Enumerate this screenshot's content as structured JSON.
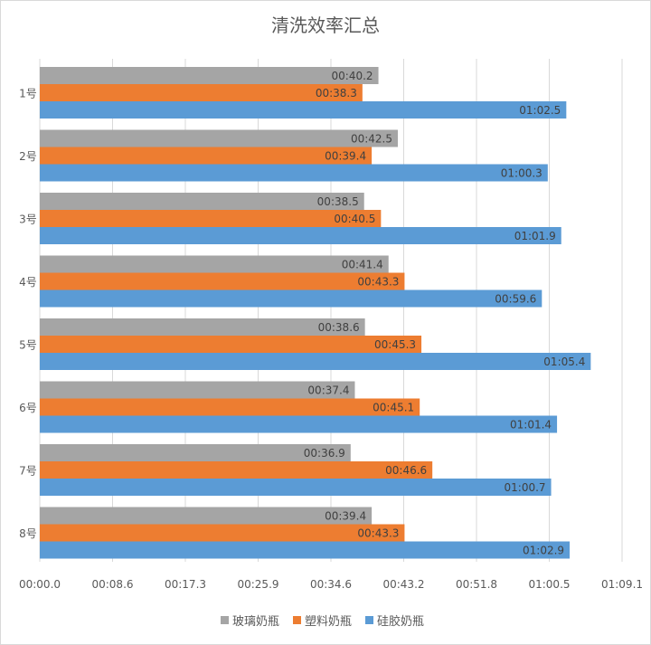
{
  "chart_data": {
    "type": "bar",
    "orientation": "horizontal",
    "title": "清洗效率汇总",
    "categories": [
      "1号",
      "2号",
      "3号",
      "4号",
      "5号",
      "6号",
      "7号",
      "8号"
    ],
    "series": [
      {
        "name": "玻璃奶瓶",
        "color": "#a5a5a5",
        "values": [
          40.2,
          42.5,
          38.5,
          41.4,
          38.6,
          37.4,
          36.9,
          39.4
        ],
        "labels": [
          "00:40.2",
          "00:42.5",
          "00:38.5",
          "00:41.4",
          "00:38.6",
          "00:37.4",
          "00:36.9",
          "00:39.4"
        ]
      },
      {
        "name": "塑料奶瓶",
        "color": "#ed7d31",
        "values": [
          38.3,
          39.4,
          40.5,
          43.3,
          45.3,
          45.1,
          46.6,
          43.3
        ],
        "labels": [
          "00:38.3",
          "00:39.4",
          "00:40.5",
          "00:43.3",
          "00:45.3",
          "00:45.1",
          "00:46.6",
          "00:43.3"
        ]
      },
      {
        "name": "硅胶奶瓶",
        "color": "#5b9bd5",
        "values": [
          62.5,
          60.3,
          61.9,
          59.6,
          65.4,
          61.4,
          60.7,
          62.9
        ],
        "labels": [
          "01:02.5",
          "01:00.3",
          "01:01.9",
          "00:59.6",
          "01:05.4",
          "01:01.4",
          "01:00.7",
          "01:02.9"
        ]
      }
    ],
    "xticks": [
      "00:00.0",
      "00:08.6",
      "00:17.3",
      "00:25.9",
      "00:34.6",
      "00:43.2",
      "00:51.8",
      "01:00.5",
      "01:09.1"
    ],
    "xlim": [
      0,
      69.12
    ],
    "grid": true,
    "legend": "bottom"
  }
}
